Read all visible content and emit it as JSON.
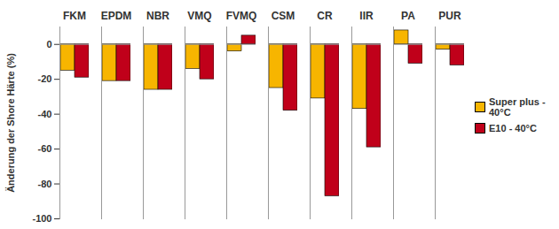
{
  "chart_data": {
    "type": "bar",
    "y_label": "Änderung der Shore Härte (%)",
    "categories": [
      "FKM",
      "EPDM",
      "NBR",
      "VMQ",
      "FVMQ",
      "CSM",
      "CR",
      "IIR",
      "PA",
      "PUR"
    ],
    "series": [
      {
        "name": "Super plus - 40°C",
        "color": "#f7b500",
        "values": [
          -15,
          -21,
          -26,
          -14,
          -4,
          -25,
          -31,
          -37,
          8,
          -3
        ]
      },
      {
        "name": "E10 - 40°C",
        "color": "#c0001a",
        "values": [
          -19,
          -21,
          -26,
          -20,
          5,
          -38,
          -87,
          -59,
          -11,
          -12
        ]
      }
    ],
    "ylim": [
      -100,
      10
    ],
    "yticks": [
      -100,
      -80,
      -60,
      -40,
      -20,
      0
    ],
    "grid": false,
    "legend": "right"
  }
}
